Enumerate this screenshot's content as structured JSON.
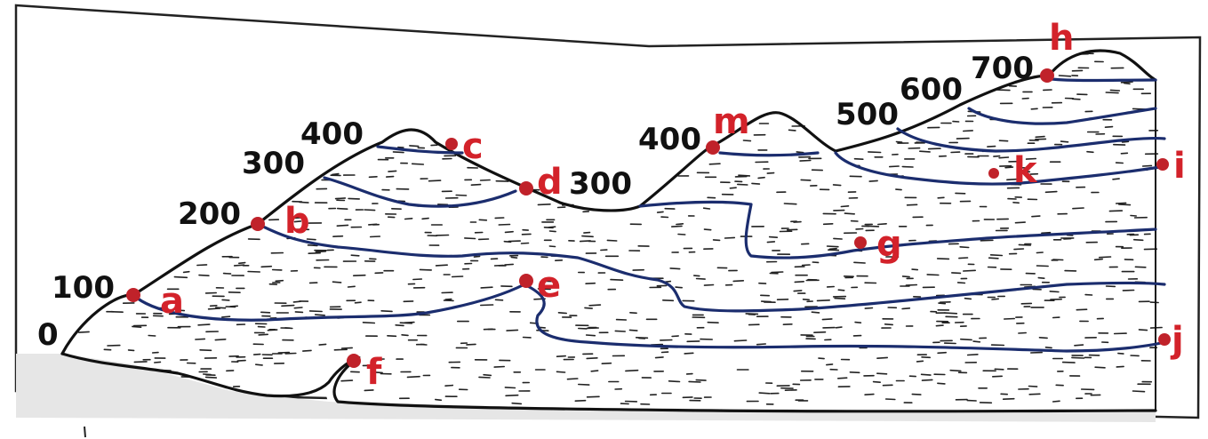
{
  "elevation_labels": {
    "e0": "0",
    "e100": "100",
    "e200": "200",
    "e300_left": "300",
    "e400_left": "400",
    "e300_mid": "300",
    "e400_mid": "400",
    "e500": "500",
    "e600": "600",
    "e700": "700"
  },
  "points": {
    "a": "a",
    "b": "b",
    "c": "c",
    "d": "d",
    "e": "e",
    "f": "f",
    "g": "g",
    "h": "h",
    "i": "i",
    "j": "j",
    "k": "k",
    "m": "m"
  },
  "colors": {
    "point_marker": "#c0222a",
    "point_label": "#d3222a",
    "contour": "#1b2d6e",
    "outline": "#111111",
    "sea": "#e6e6e6"
  }
}
